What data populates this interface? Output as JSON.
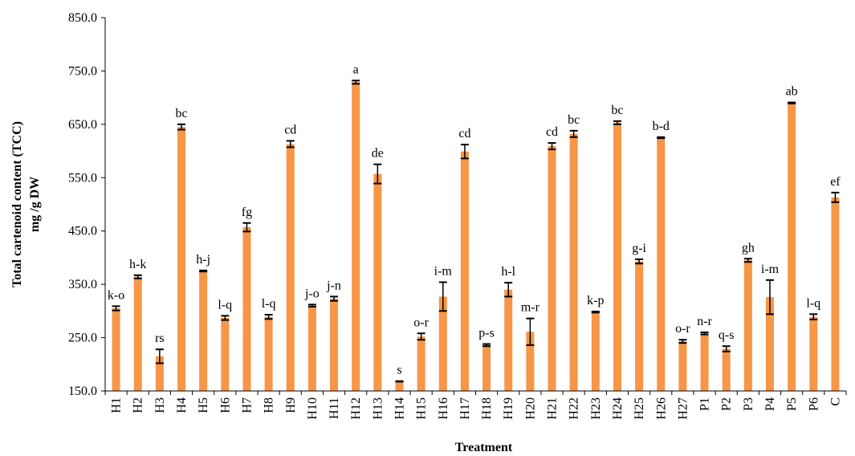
{
  "chart_data": {
    "type": "bar",
    "title": "",
    "xlabel": "Treatment",
    "ylabel_line1": "Total cartenoid content (TCC)",
    "ylabel_line2": "mg /g DW",
    "ylim": [
      150,
      850
    ],
    "yticks": [
      "150.0",
      "250.0",
      "350.0",
      "450.0",
      "550.0",
      "650.0",
      "750.0",
      "850.0"
    ],
    "grid": false,
    "legend": "none",
    "bar_color": "#F79646",
    "errorbar_color": "#000000",
    "categories": [
      "H1",
      "H2",
      "H3",
      "H4",
      "H5",
      "H6",
      "H7",
      "H8",
      "H9",
      "H10",
      "H11",
      "H12",
      "H13",
      "H14",
      "H15",
      "H16",
      "H17",
      "H18",
      "H19",
      "H20",
      "H21",
      "H22",
      "H23",
      "H24",
      "H25",
      "H26",
      "H27",
      "P1",
      "P2",
      "P3",
      "P4",
      "P5",
      "P6",
      "C"
    ],
    "values": [
      305,
      364,
      215,
      645,
      375,
      287,
      457,
      289,
      613,
      310,
      323,
      729,
      557,
      168,
      252,
      327,
      599,
      236,
      340,
      261,
      609,
      632,
      298,
      653,
      393,
      625,
      243,
      258,
      229,
      395,
      326,
      690,
      289,
      513
    ],
    "errors": [
      4,
      3,
      13,
      5,
      1,
      4,
      8,
      4,
      6,
      2,
      4,
      3,
      18,
      0.5,
      6,
      27,
      13,
      2,
      13,
      25,
      6,
      6,
      1,
      3,
      4,
      1,
      3,
      2,
      5,
      3,
      32,
      1,
      5,
      9
    ],
    "letters": [
      "k-o",
      "h-k",
      "rs",
      "bc",
      "h-j",
      "l-q",
      "fg",
      "l-q",
      "cd",
      "j-o",
      "j-n",
      "a",
      "de",
      "s",
      "o-r",
      "i-m",
      "cd",
      "p-s",
      "h-l",
      "m-r",
      "cd",
      "bc",
      "k-p",
      "bc",
      "g-i",
      "b-d",
      "o-r",
      "n-r",
      "q-s",
      "gh",
      "i-m",
      "ab",
      "l-q",
      "ef"
    ]
  }
}
